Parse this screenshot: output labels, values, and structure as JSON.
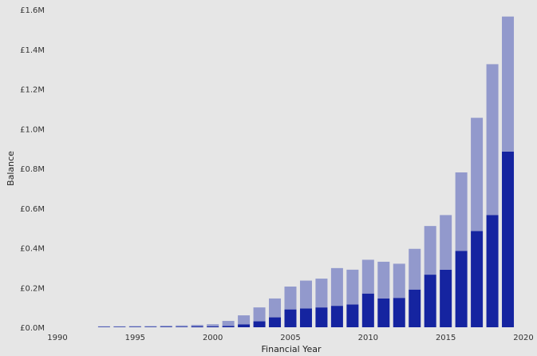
{
  "chart_data": {
    "type": "bar",
    "stacked": true,
    "xlabel": "Financial Year",
    "ylabel": "Balance",
    "xlim": [
      1990,
      2020
    ],
    "ylim": [
      0,
      1.6
    ],
    "x_ticks": [
      1990,
      1995,
      2000,
      2005,
      2010,
      2015,
      2020
    ],
    "x_tick_labels": [
      "1990",
      "1995",
      "2000",
      "2005",
      "2010",
      "2015",
      "2020"
    ],
    "y_ticks": [
      0,
      0.2,
      0.4,
      0.6,
      0.8,
      1.0,
      1.2,
      1.4,
      1.6
    ],
    "y_tick_labels": [
      "£0.0M",
      "£0.2M",
      "£0.4M",
      "£0.6M",
      "£0.8M",
      "£1.0M",
      "£1.2M",
      "£1.4M",
      "£1.6M"
    ],
    "grid": false,
    "categories": [
      1993,
      1994,
      1995,
      1996,
      1997,
      1998,
      1999,
      2000,
      2001,
      2002,
      2003,
      2004,
      2005,
      2006,
      2007,
      2008,
      2009,
      2010,
      2011,
      2012,
      2013,
      2014,
      2015,
      2016,
      2017,
      2018,
      2019
    ],
    "series": [
      {
        "color": "#1524a0",
        "values": [
          0.002,
          0.002,
          0.002,
          0.002,
          0.003,
          0.003,
          0.004,
          0.005,
          0.007,
          0.015,
          0.03,
          0.05,
          0.09,
          0.095,
          0.1,
          0.108,
          0.115,
          0.17,
          0.145,
          0.148,
          0.19,
          0.265,
          0.29,
          0.385,
          0.485,
          0.565,
          0.885
        ]
      },
      {
        "color": "#9299cc",
        "values": [
          0.003,
          0.003,
          0.004,
          0.004,
          0.005,
          0.006,
          0.008,
          0.01,
          0.025,
          0.045,
          0.07,
          0.095,
          0.115,
          0.14,
          0.145,
          0.19,
          0.175,
          0.17,
          0.185,
          0.172,
          0.205,
          0.245,
          0.275,
          0.395,
          0.57,
          0.76,
          0.68
        ]
      }
    ]
  }
}
